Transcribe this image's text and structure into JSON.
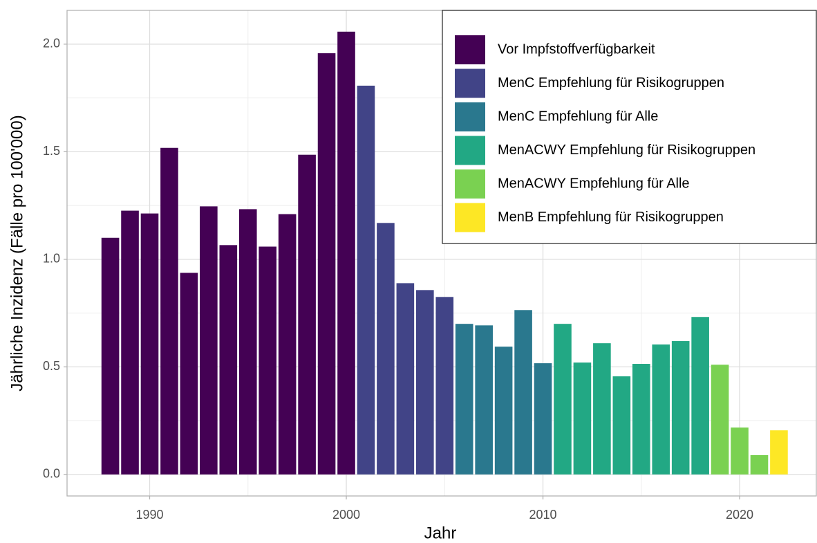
{
  "chart_data": {
    "type": "bar",
    "xlabel": "Jahr",
    "ylabel": "Jährliche Inzidenz (Fälle pro 100'000)",
    "x": [
      1988,
      1989,
      1990,
      1991,
      1992,
      1993,
      1994,
      1995,
      1996,
      1997,
      1998,
      1999,
      2000,
      2001,
      2002,
      2003,
      2004,
      2005,
      2006,
      2007,
      2008,
      2009,
      2010,
      2011,
      2012,
      2013,
      2014,
      2015,
      2016,
      2017,
      2018,
      2019,
      2020,
      2021,
      2022
    ],
    "series": [
      {
        "name": "Vor Impfstoffverfügbarkeit",
        "color": "#440154",
        "values": [
          1.1,
          1.226,
          1.213,
          1.518,
          0.937,
          1.246,
          1.066,
          1.233,
          1.059,
          1.21,
          1.486,
          1.958,
          2.058,
          null,
          null,
          null,
          null,
          null,
          null,
          null,
          null,
          null,
          null,
          null,
          null,
          null,
          null,
          null,
          null,
          null,
          null,
          null,
          null,
          null,
          null
        ]
      },
      {
        "name": "MenC Empfehlung für Risikogruppen",
        "color": "#414487",
        "values": [
          null,
          null,
          null,
          null,
          null,
          null,
          null,
          null,
          null,
          null,
          null,
          null,
          null,
          1.807,
          1.169,
          0.889,
          0.857,
          0.825,
          null,
          null,
          null,
          null,
          null,
          null,
          null,
          null,
          null,
          null,
          null,
          null,
          null,
          null,
          null,
          null,
          null
        ]
      },
      {
        "name": "MenC Empfehlung für Alle",
        "color": "#2A788E",
        "values": [
          null,
          null,
          null,
          null,
          null,
          null,
          null,
          null,
          null,
          null,
          null,
          null,
          null,
          null,
          null,
          null,
          null,
          null,
          0.7,
          0.693,
          0.594,
          0.764,
          0.517,
          null,
          null,
          null,
          null,
          null,
          null,
          null,
          null,
          null,
          null,
          null,
          null
        ]
      },
      {
        "name": "MenACWY Empfehlung für Risikogruppen",
        "color": "#22A884",
        "values": [
          null,
          null,
          null,
          null,
          null,
          null,
          null,
          null,
          null,
          null,
          null,
          null,
          null,
          null,
          null,
          null,
          null,
          null,
          null,
          null,
          null,
          null,
          null,
          0.7,
          0.52,
          0.61,
          0.456,
          0.514,
          0.604,
          0.62,
          0.732,
          null,
          null,
          null,
          null
        ]
      },
      {
        "name": "MenACWY Empfehlung für Alle",
        "color": "#7AD151",
        "values": [
          null,
          null,
          null,
          null,
          null,
          null,
          null,
          null,
          null,
          null,
          null,
          null,
          null,
          null,
          null,
          null,
          null,
          null,
          null,
          null,
          null,
          null,
          null,
          null,
          null,
          null,
          null,
          null,
          null,
          null,
          null,
          0.51,
          0.218,
          0.09,
          null
        ]
      },
      {
        "name": "MenB Empfehlung für Risikogruppen",
        "color": "#FDE725",
        "values": [
          null,
          null,
          null,
          null,
          null,
          null,
          null,
          null,
          null,
          null,
          null,
          null,
          null,
          null,
          null,
          null,
          null,
          null,
          null,
          null,
          null,
          null,
          null,
          null,
          null,
          null,
          null,
          null,
          null,
          null,
          null,
          null,
          null,
          null,
          0.205
        ]
      }
    ],
    "xlim": [
      1985.8,
      2023.9
    ],
    "xticks": [
      1990,
      2000,
      2010,
      2020
    ],
    "ylim": [
      -0.1,
      2.157
    ],
    "yticks": [
      {
        "value": 0,
        "label": "0.0"
      },
      0.5,
      {
        "value": 1,
        "label": "1.0"
      },
      1.5,
      {
        "value": 2,
        "label": "2.0"
      }
    ],
    "grid": true,
    "legend": "top-right"
  }
}
